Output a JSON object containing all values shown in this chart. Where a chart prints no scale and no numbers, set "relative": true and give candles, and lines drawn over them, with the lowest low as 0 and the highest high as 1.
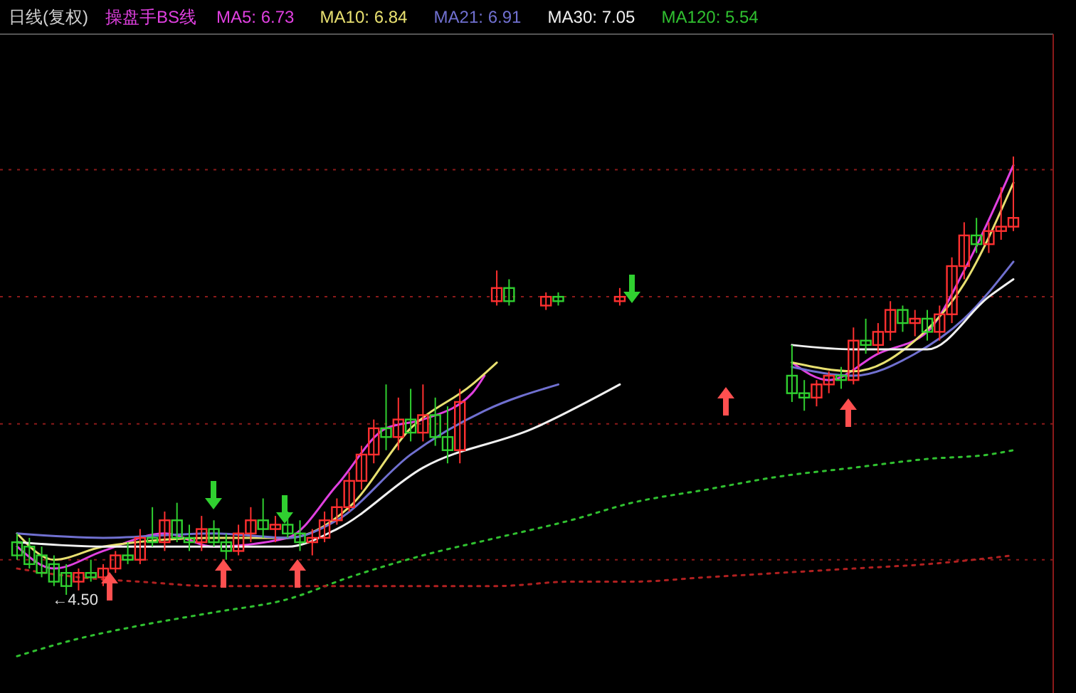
{
  "chart_data": {
    "type": "candlestick",
    "title": "日线(复权)",
    "subtitle": "操盘手BS线",
    "relative": true,
    "legend": "top left",
    "categories": [
      null,
      null,
      null,
      null,
      null,
      null,
      null,
      null,
      null,
      null,
      null,
      null,
      null,
      null,
      null,
      null,
      null,
      null,
      null,
      null,
      null,
      null,
      null,
      null,
      null,
      null,
      null,
      null,
      null,
      null,
      null,
      null,
      null,
      null,
      null,
      null,
      null,
      null,
      null,
      null,
      null,
      null,
      null,
      null,
      null,
      null,
      null,
      null,
      null,
      null,
      null,
      null,
      null,
      null,
      null,
      null,
      null,
      null,
      null,
      null,
      null,
      null,
      null,
      null,
      null,
      null,
      null,
      null,
      null,
      null,
      null,
      null,
      null,
      null,
      null,
      null,
      null,
      null,
      null,
      null,
      null,
      null
    ],
    "ohlc": [
      [
        0.12,
        0.14,
        0.08,
        0.09
      ],
      [
        0.11,
        0.13,
        0.06,
        0.07
      ],
      [
        0.09,
        0.11,
        0.04,
        0.05
      ],
      [
        0.07,
        0.09,
        0.02,
        0.03
      ],
      [
        0.05,
        0.07,
        0.0,
        0.02
      ],
      [
        0.03,
        0.06,
        0.01,
        0.05
      ],
      [
        0.05,
        0.08,
        0.03,
        0.04
      ],
      [
        0.04,
        0.07,
        0.02,
        0.06
      ],
      [
        0.06,
        0.1,
        0.05,
        0.09
      ],
      [
        0.09,
        0.12,
        0.07,
        0.08
      ],
      [
        0.08,
        0.15,
        0.07,
        0.13
      ],
      [
        0.13,
        0.2,
        0.11,
        0.12
      ],
      [
        0.12,
        0.19,
        0.1,
        0.17
      ],
      [
        0.17,
        0.21,
        0.12,
        0.13
      ],
      [
        0.13,
        0.16,
        0.1,
        0.12
      ],
      [
        0.12,
        0.18,
        0.1,
        0.15
      ],
      [
        0.15,
        0.17,
        0.11,
        0.12
      ],
      [
        0.12,
        0.14,
        0.08,
        0.1
      ],
      [
        0.1,
        0.16,
        0.09,
        0.14
      ],
      [
        0.14,
        0.2,
        0.12,
        0.17
      ],
      [
        0.17,
        0.22,
        0.13,
        0.15
      ],
      [
        0.15,
        0.18,
        0.12,
        0.16
      ],
      [
        0.16,
        0.19,
        0.13,
        0.14
      ],
      [
        0.14,
        0.17,
        0.1,
        0.12
      ],
      [
        0.12,
        0.15,
        0.09,
        0.13
      ],
      [
        0.13,
        0.19,
        0.12,
        0.17
      ],
      [
        0.17,
        0.22,
        0.16,
        0.2
      ],
      [
        0.2,
        0.28,
        0.19,
        0.26
      ],
      [
        0.26,
        0.34,
        0.24,
        0.32
      ],
      [
        0.32,
        0.4,
        0.3,
        0.38
      ],
      [
        0.38,
        0.48,
        0.33,
        0.36
      ],
      [
        0.36,
        0.45,
        0.33,
        0.4
      ],
      [
        0.4,
        0.47,
        0.35,
        0.37
      ],
      [
        0.37,
        0.48,
        0.35,
        0.41
      ],
      [
        0.41,
        0.45,
        0.34,
        0.36
      ],
      [
        0.36,
        0.43,
        0.3,
        0.33
      ],
      [
        0.33,
        0.47,
        0.3,
        0.44
      ],
      null,
      null,
      [
        0.67,
        0.74,
        0.66,
        0.7
      ],
      [
        0.7,
        0.72,
        0.66,
        0.67
      ],
      null,
      null,
      [
        0.66,
        0.69,
        0.65,
        0.68
      ],
      [
        0.68,
        0.69,
        0.66,
        0.67
      ],
      null,
      null,
      null,
      null,
      [
        0.67,
        0.7,
        0.66,
        0.68
      ],
      null,
      null,
      null,
      null,
      null,
      null,
      null,
      null,
      null,
      null,
      null,
      null,
      null,
      [
        0.5,
        0.57,
        0.44,
        0.46
      ],
      [
        0.46,
        0.49,
        0.42,
        0.45
      ],
      [
        0.45,
        0.49,
        0.43,
        0.48
      ],
      [
        0.48,
        0.51,
        0.46,
        0.5
      ],
      [
        0.5,
        0.52,
        0.47,
        0.49
      ],
      [
        0.49,
        0.61,
        0.48,
        0.58
      ],
      [
        0.58,
        0.63,
        0.55,
        0.57
      ],
      [
        0.57,
        0.62,
        0.55,
        0.6
      ],
      [
        0.6,
        0.67,
        0.58,
        0.65
      ],
      [
        0.65,
        0.66,
        0.6,
        0.62
      ],
      [
        0.62,
        0.65,
        0.59,
        0.63
      ],
      [
        0.63,
        0.65,
        0.58,
        0.6
      ],
      [
        0.6,
        0.66,
        0.58,
        0.64
      ],
      [
        0.64,
        0.77,
        0.62,
        0.75
      ],
      [
        0.75,
        0.85,
        0.72,
        0.82
      ],
      [
        0.82,
        0.86,
        0.78,
        0.8
      ],
      [
        0.8,
        0.85,
        0.78,
        0.83
      ],
      [
        0.83,
        0.93,
        0.81,
        0.84
      ],
      [
        0.84,
        1.0,
        0.83,
        0.86
      ]
    ],
    "series": [
      {
        "type": "line",
        "name": "MA5: 6.73",
        "color": "#e040e0",
        "values": [
          0.11,
          null,
          null,
          0.06,
          null,
          null,
          null,
          0.1,
          null,
          null,
          null,
          null,
          0.14,
          null,
          null,
          null,
          0.11,
          null,
          null,
          null,
          null,
          null,
          0.13,
          null,
          null,
          null,
          0.25,
          null,
          null,
          null,
          0.38,
          null,
          null,
          0.4,
          null,
          null,
          null,
          0.46,
          0.5,
          null,
          null,
          null,
          null,
          null,
          null,
          null,
          null,
          null,
          null,
          null,
          null,
          null,
          null,
          null,
          null,
          null,
          null,
          null,
          null,
          null,
          null,
          null,
          null,
          0.53,
          null,
          null,
          0.49,
          null,
          null,
          null,
          0.55,
          null,
          null,
          null,
          0.6,
          null,
          null,
          0.74,
          null,
          null,
          null,
          0.98
        ]
      },
      {
        "type": "line",
        "name": "MA10: 6.84",
        "color": "#e8e070",
        "values": [
          0.14,
          null,
          null,
          0.08,
          null,
          null,
          null,
          0.11,
          null,
          null,
          null,
          null,
          null,
          null,
          null,
          null,
          0.13,
          null,
          null,
          null,
          null,
          null,
          0.13,
          null,
          null,
          null,
          null,
          0.2,
          null,
          null,
          null,
          null,
          0.38,
          null,
          null,
          null,
          null,
          0.48,
          null,
          0.53,
          null,
          null,
          null,
          null,
          null,
          null,
          null,
          null,
          null,
          null,
          null,
          null,
          null,
          null,
          null,
          null,
          null,
          null,
          null,
          null,
          null,
          null,
          null,
          0.53,
          null,
          null,
          null,
          null,
          0.51,
          null,
          null,
          null,
          null,
          0.58,
          null,
          null,
          null,
          0.71,
          null,
          null,
          null,
          0.94
        ]
      },
      {
        "type": "line",
        "name": "MA21: 6.91",
        "color": "#7070d0",
        "values": [
          0.14,
          null,
          null,
          null,
          null,
          null,
          null,
          0.13,
          null,
          null,
          null,
          null,
          null,
          null,
          null,
          null,
          0.14,
          null,
          null,
          null,
          null,
          null,
          0.13,
          null,
          null,
          null,
          0.17,
          null,
          null,
          null,
          null,
          null,
          0.32,
          null,
          null,
          null,
          null,
          null,
          0.42,
          null,
          null,
          null,
          null,
          null,
          0.48,
          null,
          null,
          null,
          null,
          null,
          null,
          null,
          null,
          null,
          null,
          null,
          null,
          null,
          null,
          null,
          null,
          null,
          null,
          0.52,
          null,
          null,
          null,
          null,
          0.5,
          null,
          null,
          null,
          null,
          0.55,
          null,
          null,
          null,
          0.63,
          null,
          null,
          null,
          0.76
        ]
      },
      {
        "type": "line",
        "name": "MA30: 7.05",
        "color": "#f0f0f0",
        "values": [
          0.12,
          null,
          null,
          null,
          null,
          null,
          null,
          0.11,
          null,
          null,
          null,
          null,
          null,
          null,
          null,
          null,
          0.11,
          null,
          null,
          null,
          null,
          null,
          0.11,
          null,
          null,
          null,
          0.15,
          null,
          null,
          null,
          null,
          null,
          null,
          0.29,
          null,
          null,
          null,
          null,
          null,
          null,
          null,
          null,
          0.38,
          null,
          null,
          null,
          null,
          null,
          null,
          0.48,
          null,
          null,
          null,
          null,
          null,
          null,
          null,
          null,
          null,
          null,
          null,
          null,
          null,
          0.57,
          null,
          null,
          null,
          null,
          0.56,
          null,
          null,
          null,
          null,
          null,
          0.56,
          null,
          null,
          null,
          null,
          0.68,
          null,
          0.72
        ]
      },
      {
        "type": "line",
        "name": "MA120: 5.54",
        "color": "#30c030",
        "line_style": "dotted",
        "values": [
          -0.14,
          null,
          null,
          null,
          null,
          -0.1,
          null,
          null,
          null,
          null,
          -0.07,
          null,
          null,
          null,
          null,
          null,
          -0.04,
          null,
          null,
          null,
          null,
          null,
          -0.01,
          null,
          null,
          null,
          null,
          0.04,
          null,
          null,
          null,
          null,
          null,
          0.09,
          null,
          null,
          null,
          null,
          null,
          0.13,
          null,
          null,
          null,
          null,
          null,
          0.17,
          null,
          null,
          null,
          null,
          0.21,
          null,
          null,
          null,
          null,
          null,
          0.24,
          null,
          null,
          null,
          null,
          null,
          0.27,
          null,
          null,
          null,
          null,
          null,
          0.29,
          null,
          null,
          null,
          null,
          null,
          0.31,
          null,
          null,
          null,
          null,
          0.32,
          null,
          0.33
        ]
      },
      {
        "type": "line",
        "color": "#b02020",
        "line_style": "dotted",
        "values": [
          0.06,
          null,
          null,
          null,
          null,
          0.04,
          null,
          null,
          null,
          null,
          0.03,
          null,
          null,
          null,
          null,
          null,
          0.02,
          null,
          null,
          null,
          null,
          null,
          0.02,
          null,
          null,
          null,
          null,
          0.02,
          null,
          null,
          null,
          null,
          null,
          0.02,
          null,
          null,
          null,
          null,
          null,
          0.02,
          null,
          null,
          null,
          null,
          null,
          0.03,
          null,
          null,
          null,
          null,
          0.03,
          null,
          null,
          null,
          null,
          null,
          0.04,
          null,
          null,
          null,
          null,
          null,
          0.05,
          null,
          null,
          null,
          null,
          null,
          0.06,
          null,
          null,
          null,
          null,
          null,
          0.07,
          null,
          null,
          null,
          null,
          null,
          null,
          0.09
        ]
      }
    ],
    "ref_lines": [
      {
        "axis": "y",
        "value": 0.97,
        "color": "#8b1a1a",
        "line_style": "dotted"
      },
      {
        "axis": "y",
        "value": 0.68,
        "color": "#8b1a1a",
        "line_style": "dotted"
      },
      {
        "axis": "y",
        "value": 0.39,
        "color": "#8b1a1a",
        "line_style": "dotted"
      },
      {
        "axis": "y",
        "value": 0.08,
        "color": "#8b1a1a",
        "line_style": "dotted"
      }
    ],
    "annotations": [
      {
        "text": "←4.50",
        "y": 0
      }
    ]
  }
}
